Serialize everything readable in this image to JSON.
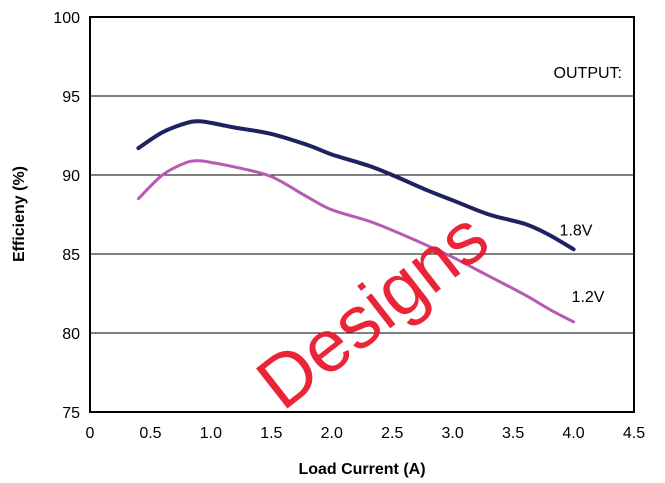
{
  "chart_data": {
    "type": "line",
    "xlabel": "Load Current (A)",
    "ylabel": "Efficieny (%)",
    "xlim": [
      0,
      4.5
    ],
    "ylim": [
      75,
      100
    ],
    "x_ticks": [
      "0",
      "0.5",
      "1.0",
      "1.5",
      "2.0",
      "2.5",
      "3.0",
      "3.5",
      "4.0",
      "4.5"
    ],
    "y_ticks": [
      "75",
      "80",
      "85",
      "90",
      "95",
      "100"
    ],
    "grid": "horizontal",
    "annotations": {
      "output": "OUTPUT:"
    },
    "series": [
      {
        "name": "1.8V",
        "color": "#1f2160",
        "x": [
          0.4,
          0.6,
          0.8,
          0.9,
          1.0,
          1.2,
          1.5,
          1.8,
          2.0,
          2.3,
          2.5,
          2.8,
          3.0,
          3.3,
          3.6,
          3.8,
          4.0
        ],
        "y": [
          91.7,
          92.7,
          93.3,
          93.4,
          93.3,
          93.0,
          92.6,
          91.9,
          91.3,
          90.6,
          90.0,
          89.0,
          88.4,
          87.5,
          86.9,
          86.2,
          85.3
        ]
      },
      {
        "name": "1.2V",
        "color": "#b65ab2",
        "x": [
          0.4,
          0.6,
          0.8,
          0.9,
          1.0,
          1.2,
          1.5,
          1.8,
          2.0,
          2.3,
          2.5,
          2.8,
          3.0,
          3.3,
          3.6,
          3.8,
          4.0
        ],
        "y": [
          88.5,
          90.0,
          90.8,
          90.9,
          90.8,
          90.5,
          89.9,
          88.6,
          87.8,
          87.1,
          86.5,
          85.5,
          84.8,
          83.6,
          82.4,
          81.5,
          80.7
        ]
      }
    ]
  },
  "watermark": {
    "text": "Designs",
    "color": "#e8192c"
  }
}
